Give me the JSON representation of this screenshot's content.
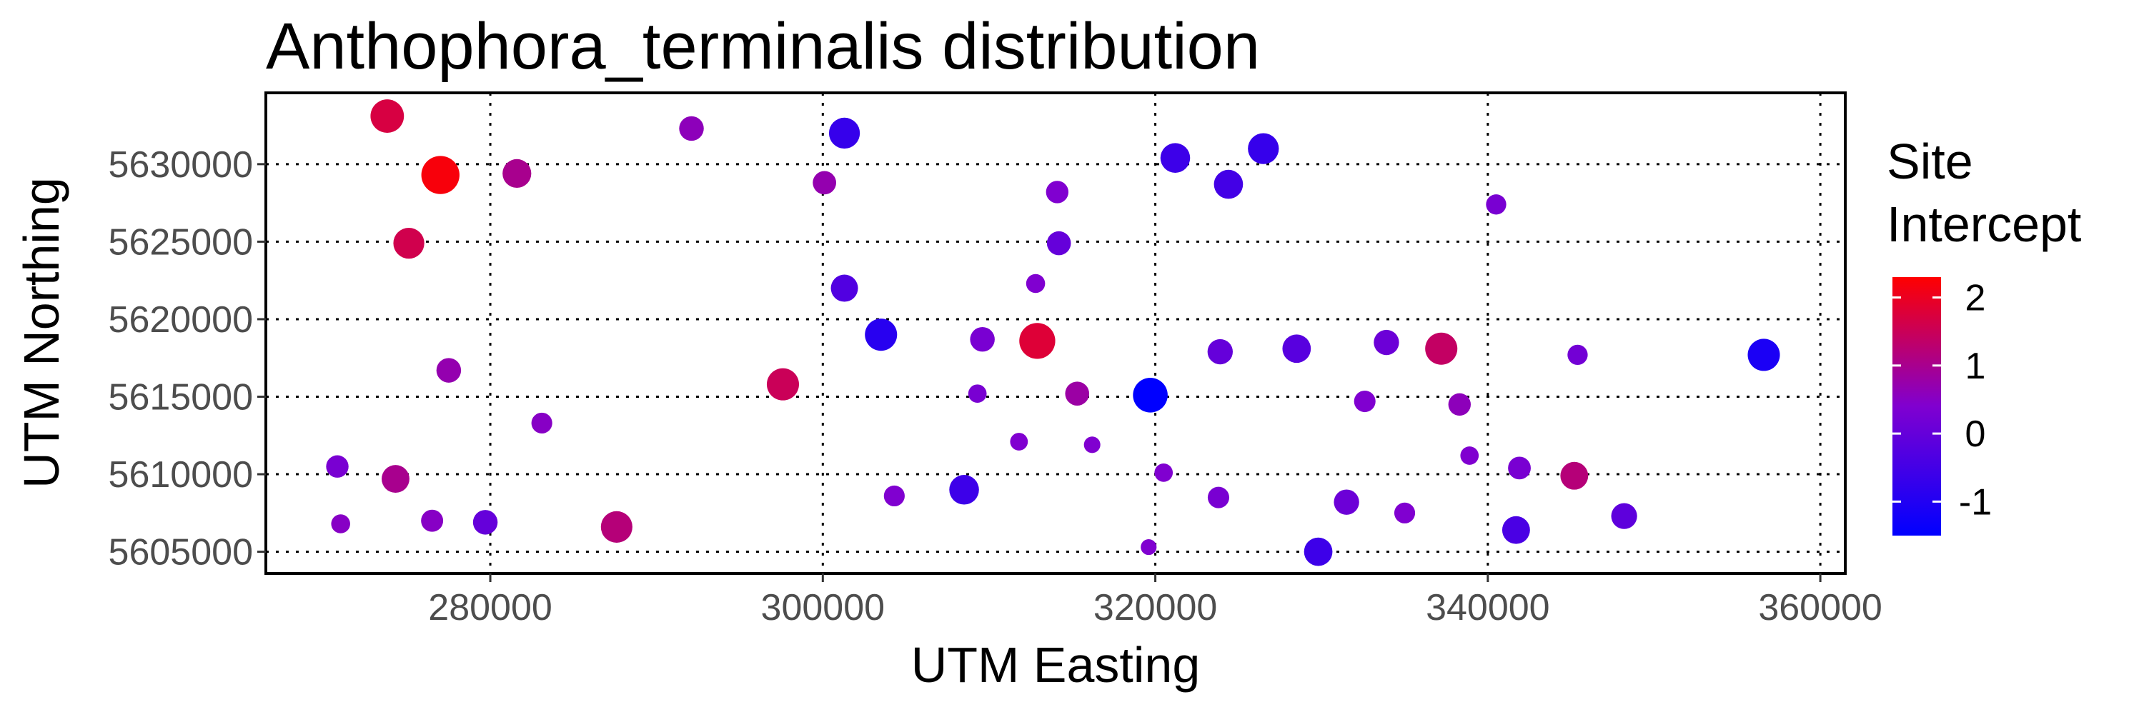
{
  "chart_data": {
    "type": "scatter",
    "title": "Anthophora_terminalis distribution",
    "xlabel": "UTM Easting",
    "ylabel": "UTM Northing",
    "xlim": [
      266500,
      361500
    ],
    "ylim": [
      5603600,
      5634600
    ],
    "xticks": [
      280000,
      300000,
      320000,
      340000,
      360000
    ],
    "yticks": [
      5605000,
      5610000,
      5615000,
      5620000,
      5625000,
      5630000
    ],
    "xtick_labels": [
      "280000",
      "300000",
      "320000",
      "340000",
      "360000"
    ],
    "ytick_labels": [
      "5605000",
      "5610000",
      "5615000",
      "5620000",
      "5625000",
      "5630000"
    ],
    "grid": true,
    "legend": {
      "title_lines": [
        "Site",
        "Intercept"
      ],
      "placement": "right",
      "range": [
        -1.5,
        2.3
      ],
      "ticks": [
        2,
        1,
        0,
        -1
      ],
      "tick_labels": [
        "2",
        "1",
        "0",
        "-1"
      ],
      "colors": {
        "low": "#0000ff",
        "mid": "#8000d0",
        "high": "#ff0000"
      }
    },
    "points": [
      {
        "x": 273800,
        "y": 5633100,
        "v": 1.7,
        "s": 0.7
      },
      {
        "x": 277000,
        "y": 5629300,
        "v": 2.2,
        "s": 0.85
      },
      {
        "x": 281600,
        "y": 5629400,
        "v": 1.0,
        "s": 0.55
      },
      {
        "x": 292100,
        "y": 5632300,
        "v": 0.6,
        "s": 0.42
      },
      {
        "x": 301300,
        "y": 5632000,
        "v": -0.7,
        "s": 0.62
      },
      {
        "x": 300100,
        "y": 5628800,
        "v": 0.7,
        "s": 0.38
      },
      {
        "x": 321200,
        "y": 5630400,
        "v": -0.6,
        "s": 0.58
      },
      {
        "x": 326500,
        "y": 5631000,
        "v": -0.7,
        "s": 0.62
      },
      {
        "x": 324400,
        "y": 5628700,
        "v": -0.5,
        "s": 0.56
      },
      {
        "x": 314100,
        "y": 5628200,
        "v": 0.4,
        "s": 0.35
      },
      {
        "x": 340500,
        "y": 5627400,
        "v": 0.3,
        "s": 0.28
      },
      {
        "x": 275100,
        "y": 5624900,
        "v": 1.6,
        "s": 0.62
      },
      {
        "x": 314200,
        "y": 5624900,
        "v": 0.0,
        "s": 0.4
      },
      {
        "x": 301300,
        "y": 5622000,
        "v": -0.3,
        "s": 0.5
      },
      {
        "x": 312800,
        "y": 5622300,
        "v": 0.4,
        "s": 0.24
      },
      {
        "x": 303500,
        "y": 5619000,
        "v": -0.9,
        "s": 0.66
      },
      {
        "x": 309600,
        "y": 5618700,
        "v": 0.3,
        "s": 0.42
      },
      {
        "x": 312900,
        "y": 5618600,
        "v": 1.8,
        "s": 0.78
      },
      {
        "x": 323900,
        "y": 5617900,
        "v": 0.0,
        "s": 0.44
      },
      {
        "x": 328500,
        "y": 5618100,
        "v": -0.2,
        "s": 0.54
      },
      {
        "x": 333900,
        "y": 5618500,
        "v": 0.1,
        "s": 0.44
      },
      {
        "x": 337200,
        "y": 5618100,
        "v": 1.4,
        "s": 0.66
      },
      {
        "x": 345400,
        "y": 5617700,
        "v": 0.2,
        "s": 0.28
      },
      {
        "x": 356600,
        "y": 5617700,
        "v": -1.1,
        "s": 0.66
      },
      {
        "x": 277500,
        "y": 5616700,
        "v": 0.7,
        "s": 0.42
      },
      {
        "x": 297600,
        "y": 5615800,
        "v": 1.5,
        "s": 0.66
      },
      {
        "x": 309300,
        "y": 5615200,
        "v": 0.3,
        "s": 0.22
      },
      {
        "x": 315300,
        "y": 5615200,
        "v": 0.8,
        "s": 0.4
      },
      {
        "x": 319700,
        "y": 5615100,
        "v": -1.5,
        "s": 0.74
      },
      {
        "x": 332600,
        "y": 5614700,
        "v": 0.4,
        "s": 0.32
      },
      {
        "x": 338300,
        "y": 5614500,
        "v": 0.6,
        "s": 0.35
      },
      {
        "x": 283100,
        "y": 5613300,
        "v": 0.5,
        "s": 0.3
      },
      {
        "x": 311800,
        "y": 5612100,
        "v": 0.4,
        "s": 0.2
      },
      {
        "x": 316200,
        "y": 5611900,
        "v": 0.4,
        "s": 0.16
      },
      {
        "x": 338900,
        "y": 5611200,
        "v": 0.4,
        "s": 0.22
      },
      {
        "x": 270800,
        "y": 5610500,
        "v": 0.3,
        "s": 0.35
      },
      {
        "x": 274300,
        "y": 5609700,
        "v": 1.0,
        "s": 0.52
      },
      {
        "x": 320500,
        "y": 5610100,
        "v": 0.4,
        "s": 0.22
      },
      {
        "x": 341900,
        "y": 5610400,
        "v": 0.3,
        "s": 0.36
      },
      {
        "x": 345200,
        "y": 5609900,
        "v": 1.2,
        "s": 0.52
      },
      {
        "x": 304300,
        "y": 5608600,
        "v": 0.4,
        "s": 0.3
      },
      {
        "x": 308500,
        "y": 5609000,
        "v": -0.6,
        "s": 0.58
      },
      {
        "x": 323800,
        "y": 5608500,
        "v": 0.3,
        "s": 0.32
      },
      {
        "x": 331500,
        "y": 5608200,
        "v": 0.1,
        "s": 0.44
      },
      {
        "x": 335000,
        "y": 5607500,
        "v": 0.4,
        "s": 0.3
      },
      {
        "x": 348200,
        "y": 5607300,
        "v": -0.1,
        "s": 0.46
      },
      {
        "x": 271000,
        "y": 5606800,
        "v": 0.5,
        "s": 0.24
      },
      {
        "x": 276500,
        "y": 5607000,
        "v": 0.5,
        "s": 0.34
      },
      {
        "x": 279700,
        "y": 5606900,
        "v": 0.0,
        "s": 0.42
      },
      {
        "x": 287600,
        "y": 5606600,
        "v": 1.2,
        "s": 0.64
      },
      {
        "x": 341700,
        "y": 5606400,
        "v": -0.4,
        "s": 0.52
      },
      {
        "x": 319600,
        "y": 5605300,
        "v": 0.4,
        "s": 0.14
      },
      {
        "x": 329800,
        "y": 5605000,
        "v": -0.6,
        "s": 0.54
      }
    ]
  }
}
